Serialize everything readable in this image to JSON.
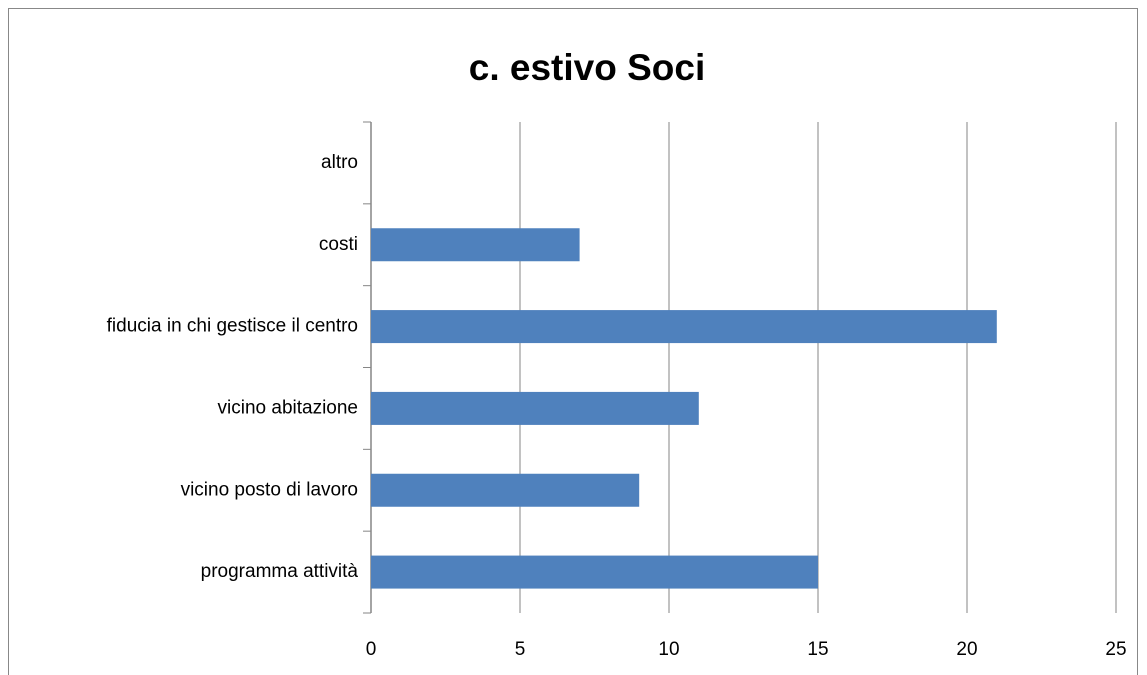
{
  "chart_data": {
    "type": "bar",
    "orientation": "horizontal",
    "title": "c. estivo Soci",
    "categories": [
      "altro",
      "costi",
      "fiducia in chi gestisce il centro",
      "vicino abitazione",
      "vicino posto di lavoro",
      "programma attività"
    ],
    "values": [
      0,
      7,
      21,
      11,
      9,
      15
    ],
    "color": "#4f81bd",
    "xlim": [
      0,
      25
    ],
    "xticks": [
      0,
      5,
      10,
      15,
      20,
      25
    ],
    "grid": true
  }
}
